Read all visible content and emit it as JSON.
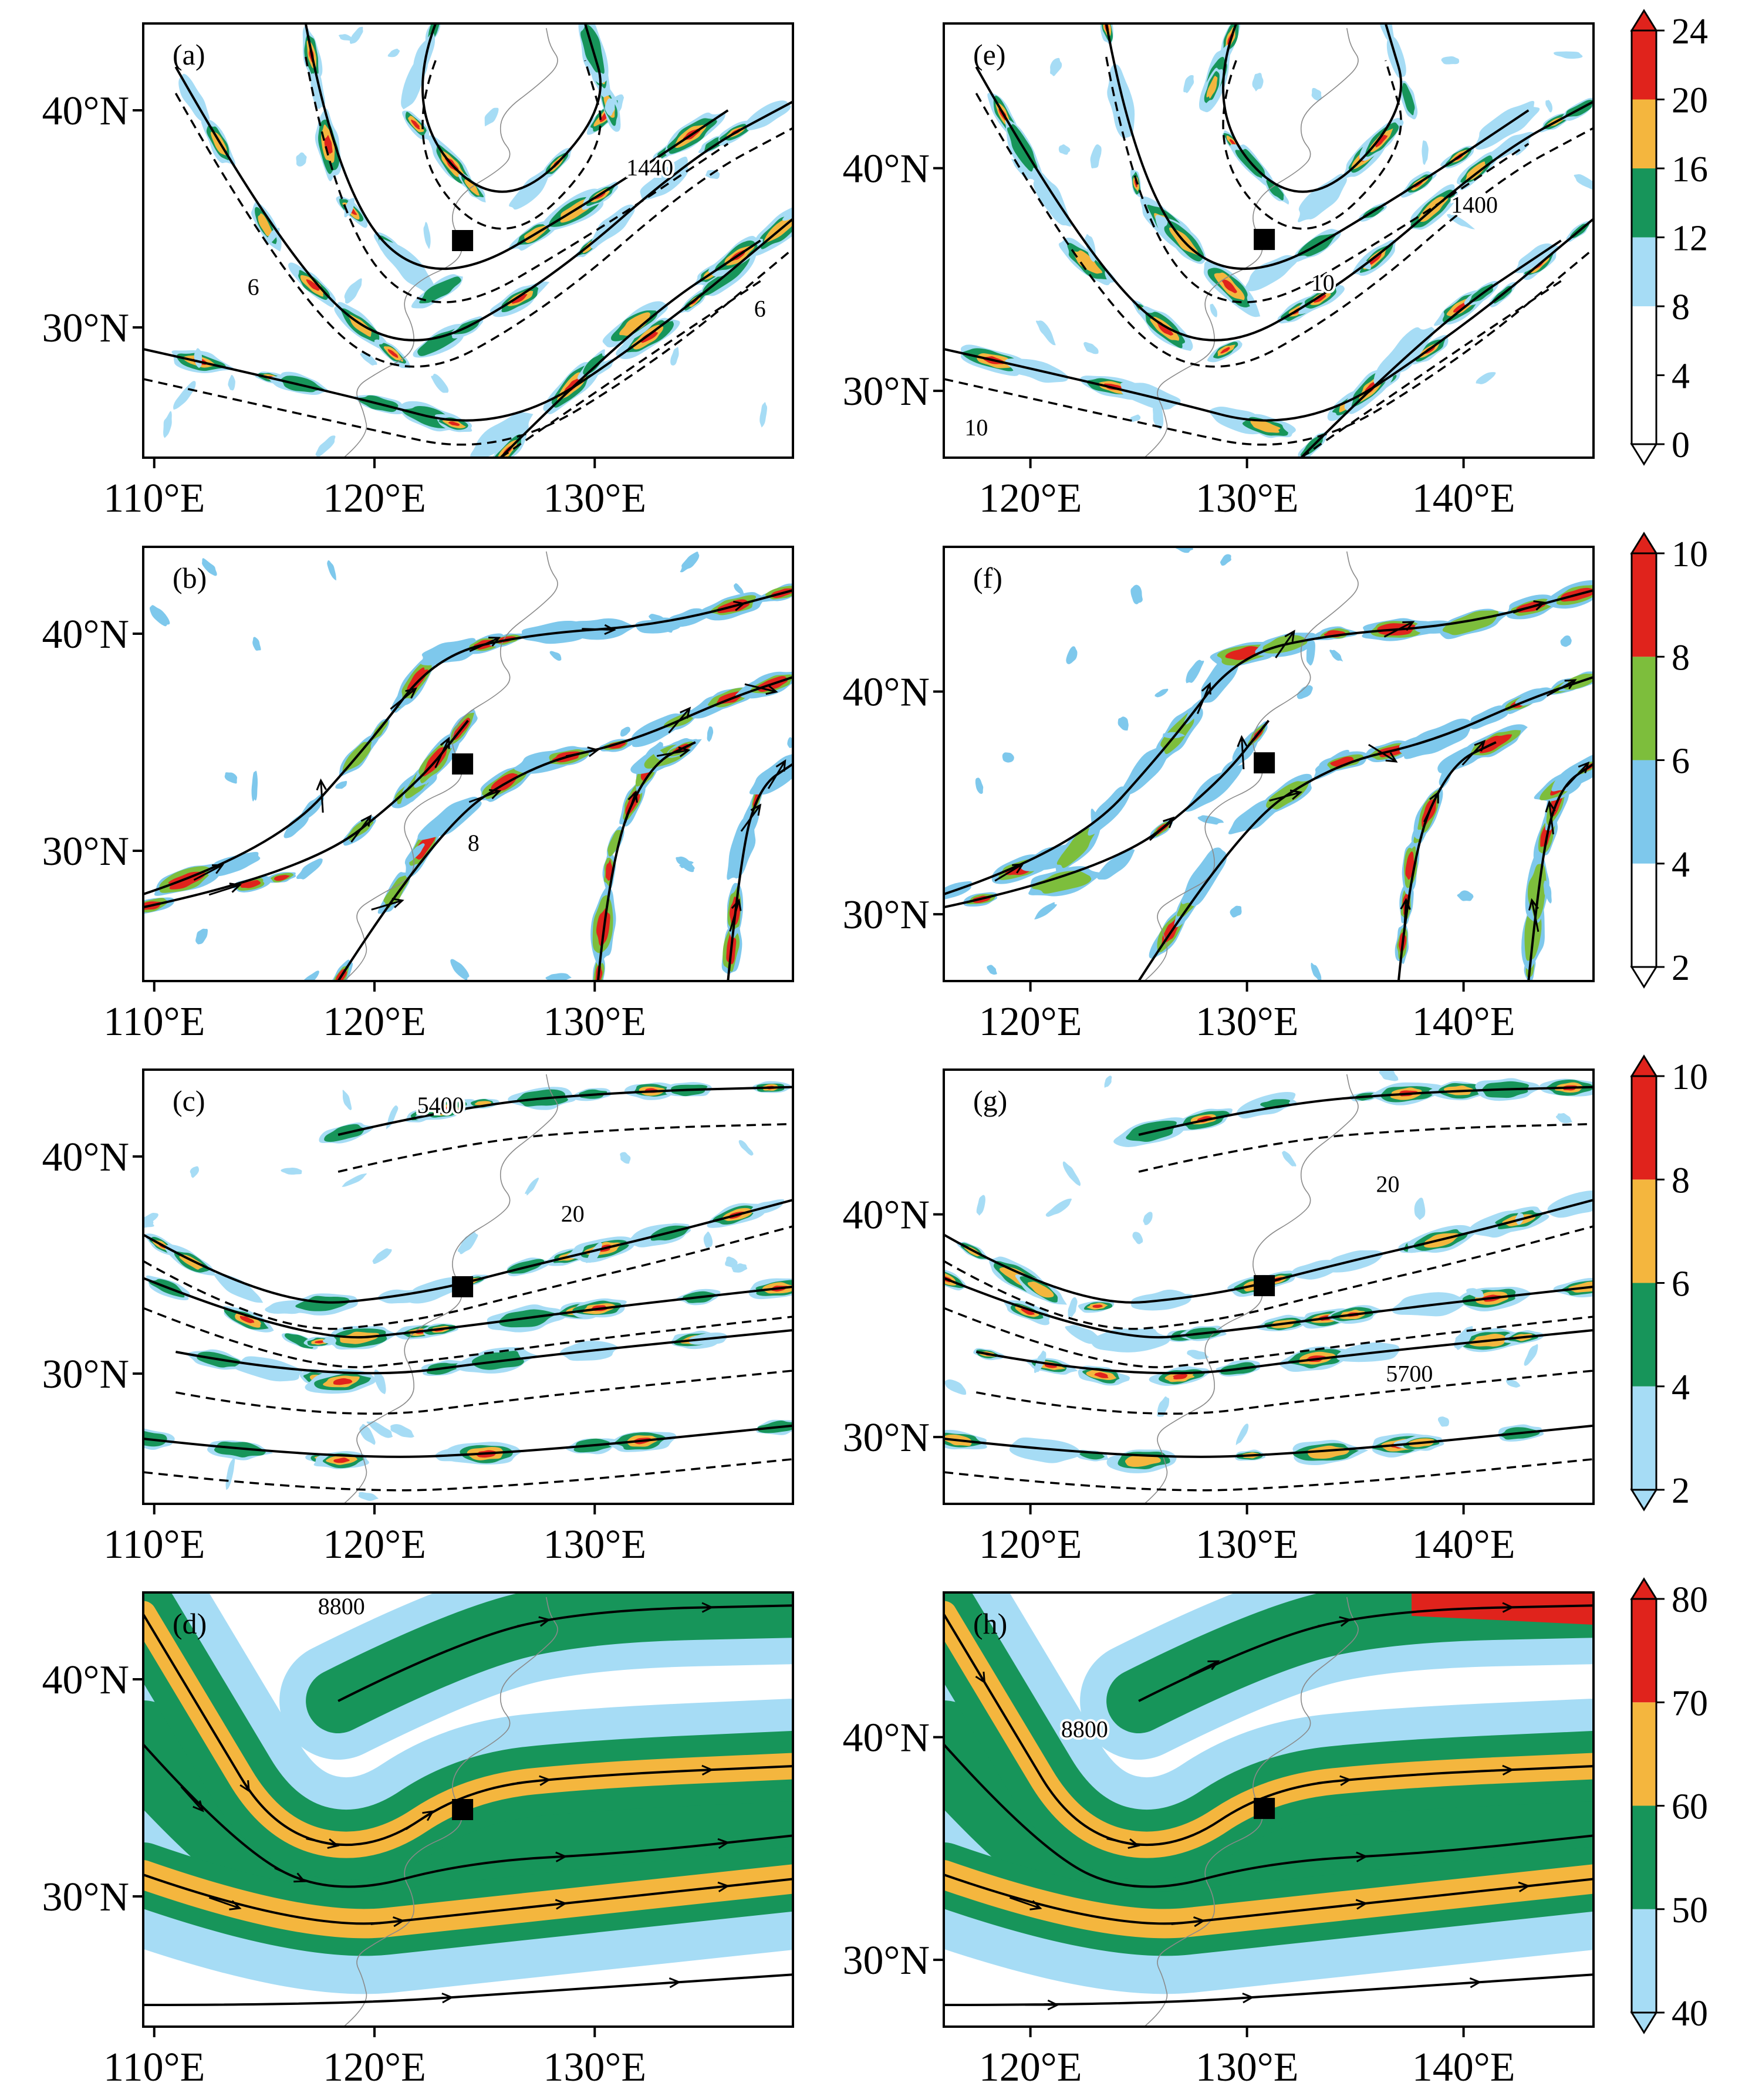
{
  "figure": {
    "panels": [
      {
        "id": "a",
        "label": "(a)",
        "lon_range": [
          109.5,
          139
        ],
        "lat_range": [
          24,
          44
        ],
        "x_ticks": [
          {
            "lon": 110,
            "label": "110°E"
          },
          {
            "lon": 120,
            "label": "120°E"
          },
          {
            "lon": 130,
            "label": "130°E"
          }
        ],
        "y_ticks": [
          {
            "lat": 30,
            "label": "30°N"
          },
          {
            "lat": 40,
            "label": "40°N"
          }
        ],
        "marker": {
          "lon": 124,
          "lat": 34
        },
        "contour_labels": [
          {
            "text": "1440",
            "lon": 132.5,
            "lat": 37
          },
          {
            "text": "6",
            "lon": 114.5,
            "lat": 31.5
          },
          {
            "text": "6",
            "lon": 137.5,
            "lat": 30.5
          }
        ],
        "shaded_variable": "a",
        "vectors": false
      },
      {
        "id": "e",
        "label": "(e)",
        "lon_range": [
          116,
          146
        ],
        "lat_range": [
          27,
          46.5
        ],
        "x_ticks": [
          {
            "lon": 120,
            "label": "120°E"
          },
          {
            "lon": 130,
            "label": "130°E"
          },
          {
            "lon": 140,
            "label": "140°E"
          }
        ],
        "y_ticks": [
          {
            "lat": 30,
            "label": "30°N"
          },
          {
            "lat": 40,
            "label": "40°N"
          }
        ],
        "marker": {
          "lon": 130.8,
          "lat": 36.8
        },
        "contour_labels": [
          {
            "text": "1400",
            "lon": 140.5,
            "lat": 38
          },
          {
            "text": "10",
            "lon": 133.5,
            "lat": 34.5
          },
          {
            "text": "10",
            "lon": 117.5,
            "lat": 28
          }
        ],
        "shaded_variable": "a",
        "vectors": false
      },
      {
        "id": "b",
        "label": "(b)",
        "lon_range": [
          109.5,
          139
        ],
        "lat_range": [
          24,
          44
        ],
        "x_ticks": [
          {
            "lon": 110,
            "label": "110°E"
          },
          {
            "lon": 120,
            "label": "120°E"
          },
          {
            "lon": 130,
            "label": "130°E"
          }
        ],
        "y_ticks": [
          {
            "lat": 30,
            "label": "30°N"
          },
          {
            "lat": 40,
            "label": "40°N"
          }
        ],
        "marker": {
          "lon": 124,
          "lat": 34
        },
        "contour_labels": [
          {
            "text": "8",
            "lon": 124.5,
            "lat": 30
          }
        ],
        "shaded_variable": "b",
        "vectors": true
      },
      {
        "id": "f",
        "label": "(f)",
        "lon_range": [
          116,
          146
        ],
        "lat_range": [
          27,
          46.5
        ],
        "x_ticks": [
          {
            "lon": 120,
            "label": "120°E"
          },
          {
            "lon": 130,
            "label": "130°E"
          },
          {
            "lon": 140,
            "label": "140°E"
          }
        ],
        "y_ticks": [
          {
            "lat": 30,
            "label": "30°N"
          },
          {
            "lat": 40,
            "label": "40°N"
          }
        ],
        "marker": {
          "lon": 130.8,
          "lat": 36.8
        },
        "contour_labels": [],
        "shaded_variable": "b",
        "vectors": true
      },
      {
        "id": "c",
        "label": "(c)",
        "lon_range": [
          109.5,
          139
        ],
        "lat_range": [
          24,
          44
        ],
        "x_ticks": [
          {
            "lon": 110,
            "label": "110°E"
          },
          {
            "lon": 120,
            "label": "120°E"
          },
          {
            "lon": 130,
            "label": "130°E"
          }
        ],
        "y_ticks": [
          {
            "lat": 30,
            "label": "30°N"
          },
          {
            "lat": 40,
            "label": "40°N"
          }
        ],
        "marker": {
          "lon": 124,
          "lat": 34
        },
        "contour_labels": [
          {
            "text": "5400",
            "lon": 123,
            "lat": 42
          },
          {
            "text": "20",
            "lon": 129,
            "lat": 37
          }
        ],
        "shaded_variable": "c",
        "vectors": false
      },
      {
        "id": "g",
        "label": "(g)",
        "lon_range": [
          116,
          146
        ],
        "lat_range": [
          27,
          46.5
        ],
        "x_ticks": [
          {
            "lon": 120,
            "label": "120°E"
          },
          {
            "lon": 130,
            "label": "130°E"
          },
          {
            "lon": 140,
            "label": "140°E"
          }
        ],
        "y_ticks": [
          {
            "lat": 30,
            "label": "30°N"
          },
          {
            "lat": 40,
            "label": "40°N"
          }
        ],
        "marker": {
          "lon": 130.8,
          "lat": 36.8
        },
        "contour_labels": [
          {
            "text": "20",
            "lon": 136.5,
            "lat": 41
          },
          {
            "text": "5700",
            "lon": 137.5,
            "lat": 32.5
          }
        ],
        "shaded_variable": "c",
        "vectors": false
      },
      {
        "id": "d",
        "label": "(d)",
        "lon_range": [
          109.5,
          139
        ],
        "lat_range": [
          24,
          44
        ],
        "x_ticks": [
          {
            "lon": 110,
            "label": "110°E"
          },
          {
            "lon": 120,
            "label": "120°E"
          },
          {
            "lon": 130,
            "label": "130°E"
          }
        ],
        "y_ticks": [
          {
            "lat": 30,
            "label": "30°N"
          },
          {
            "lat": 40,
            "label": "40°N"
          }
        ],
        "marker": {
          "lon": 124,
          "lat": 34
        },
        "contour_labels": [
          {
            "text": "8800",
            "lon": 118.5,
            "lat": 43
          }
        ],
        "shaded_variable": "d",
        "vectors": true
      },
      {
        "id": "h",
        "label": "(h)",
        "lon_range": [
          116,
          146
        ],
        "lat_range": [
          27,
          46.5
        ],
        "x_ticks": [
          {
            "lon": 120,
            "label": "120°E"
          },
          {
            "lon": 130,
            "label": "130°E"
          },
          {
            "lon": 140,
            "label": "140°E"
          }
        ],
        "y_ticks": [
          {
            "lat": 30,
            "label": "30°N"
          },
          {
            "lat": 40,
            "label": "40°N"
          }
        ],
        "marker": {
          "lon": 130.8,
          "lat": 36.8
        },
        "contour_labels": [
          {
            "text": "8800",
            "lon": 122.5,
            "lat": 40
          }
        ],
        "shaded_variable": "d",
        "vectors": true
      }
    ],
    "colorbars": [
      {
        "id": "a",
        "ticks": [
          "0",
          "4",
          "8",
          "12",
          "16",
          "20",
          "24"
        ],
        "colors": [
          "#ffffff",
          "#ffffff",
          "#a6dcf5",
          "#17955a",
          "#f4b63e",
          "#e0231c"
        ]
      },
      {
        "id": "b",
        "ticks": [
          "2",
          "4",
          "6",
          "8",
          "10"
        ],
        "colors": [
          "#ffffff",
          "#7ec8ec",
          "#7dbe3c",
          "#e0231c"
        ]
      },
      {
        "id": "c",
        "ticks": [
          "2",
          "4",
          "6",
          "8",
          "10"
        ],
        "colors": [
          "#a6dcf5",
          "#17955a",
          "#f4b63e",
          "#e0231c"
        ]
      },
      {
        "id": "d",
        "ticks": [
          "40",
          "50",
          "60",
          "70",
          "80"
        ],
        "colors": [
          "#a6dcf5",
          "#17955a",
          "#f4b63e",
          "#e0231c"
        ]
      }
    ],
    "colors": {
      "ink": "#000000",
      "coast": "#8a8a8a",
      "frame": "#000000"
    }
  }
}
